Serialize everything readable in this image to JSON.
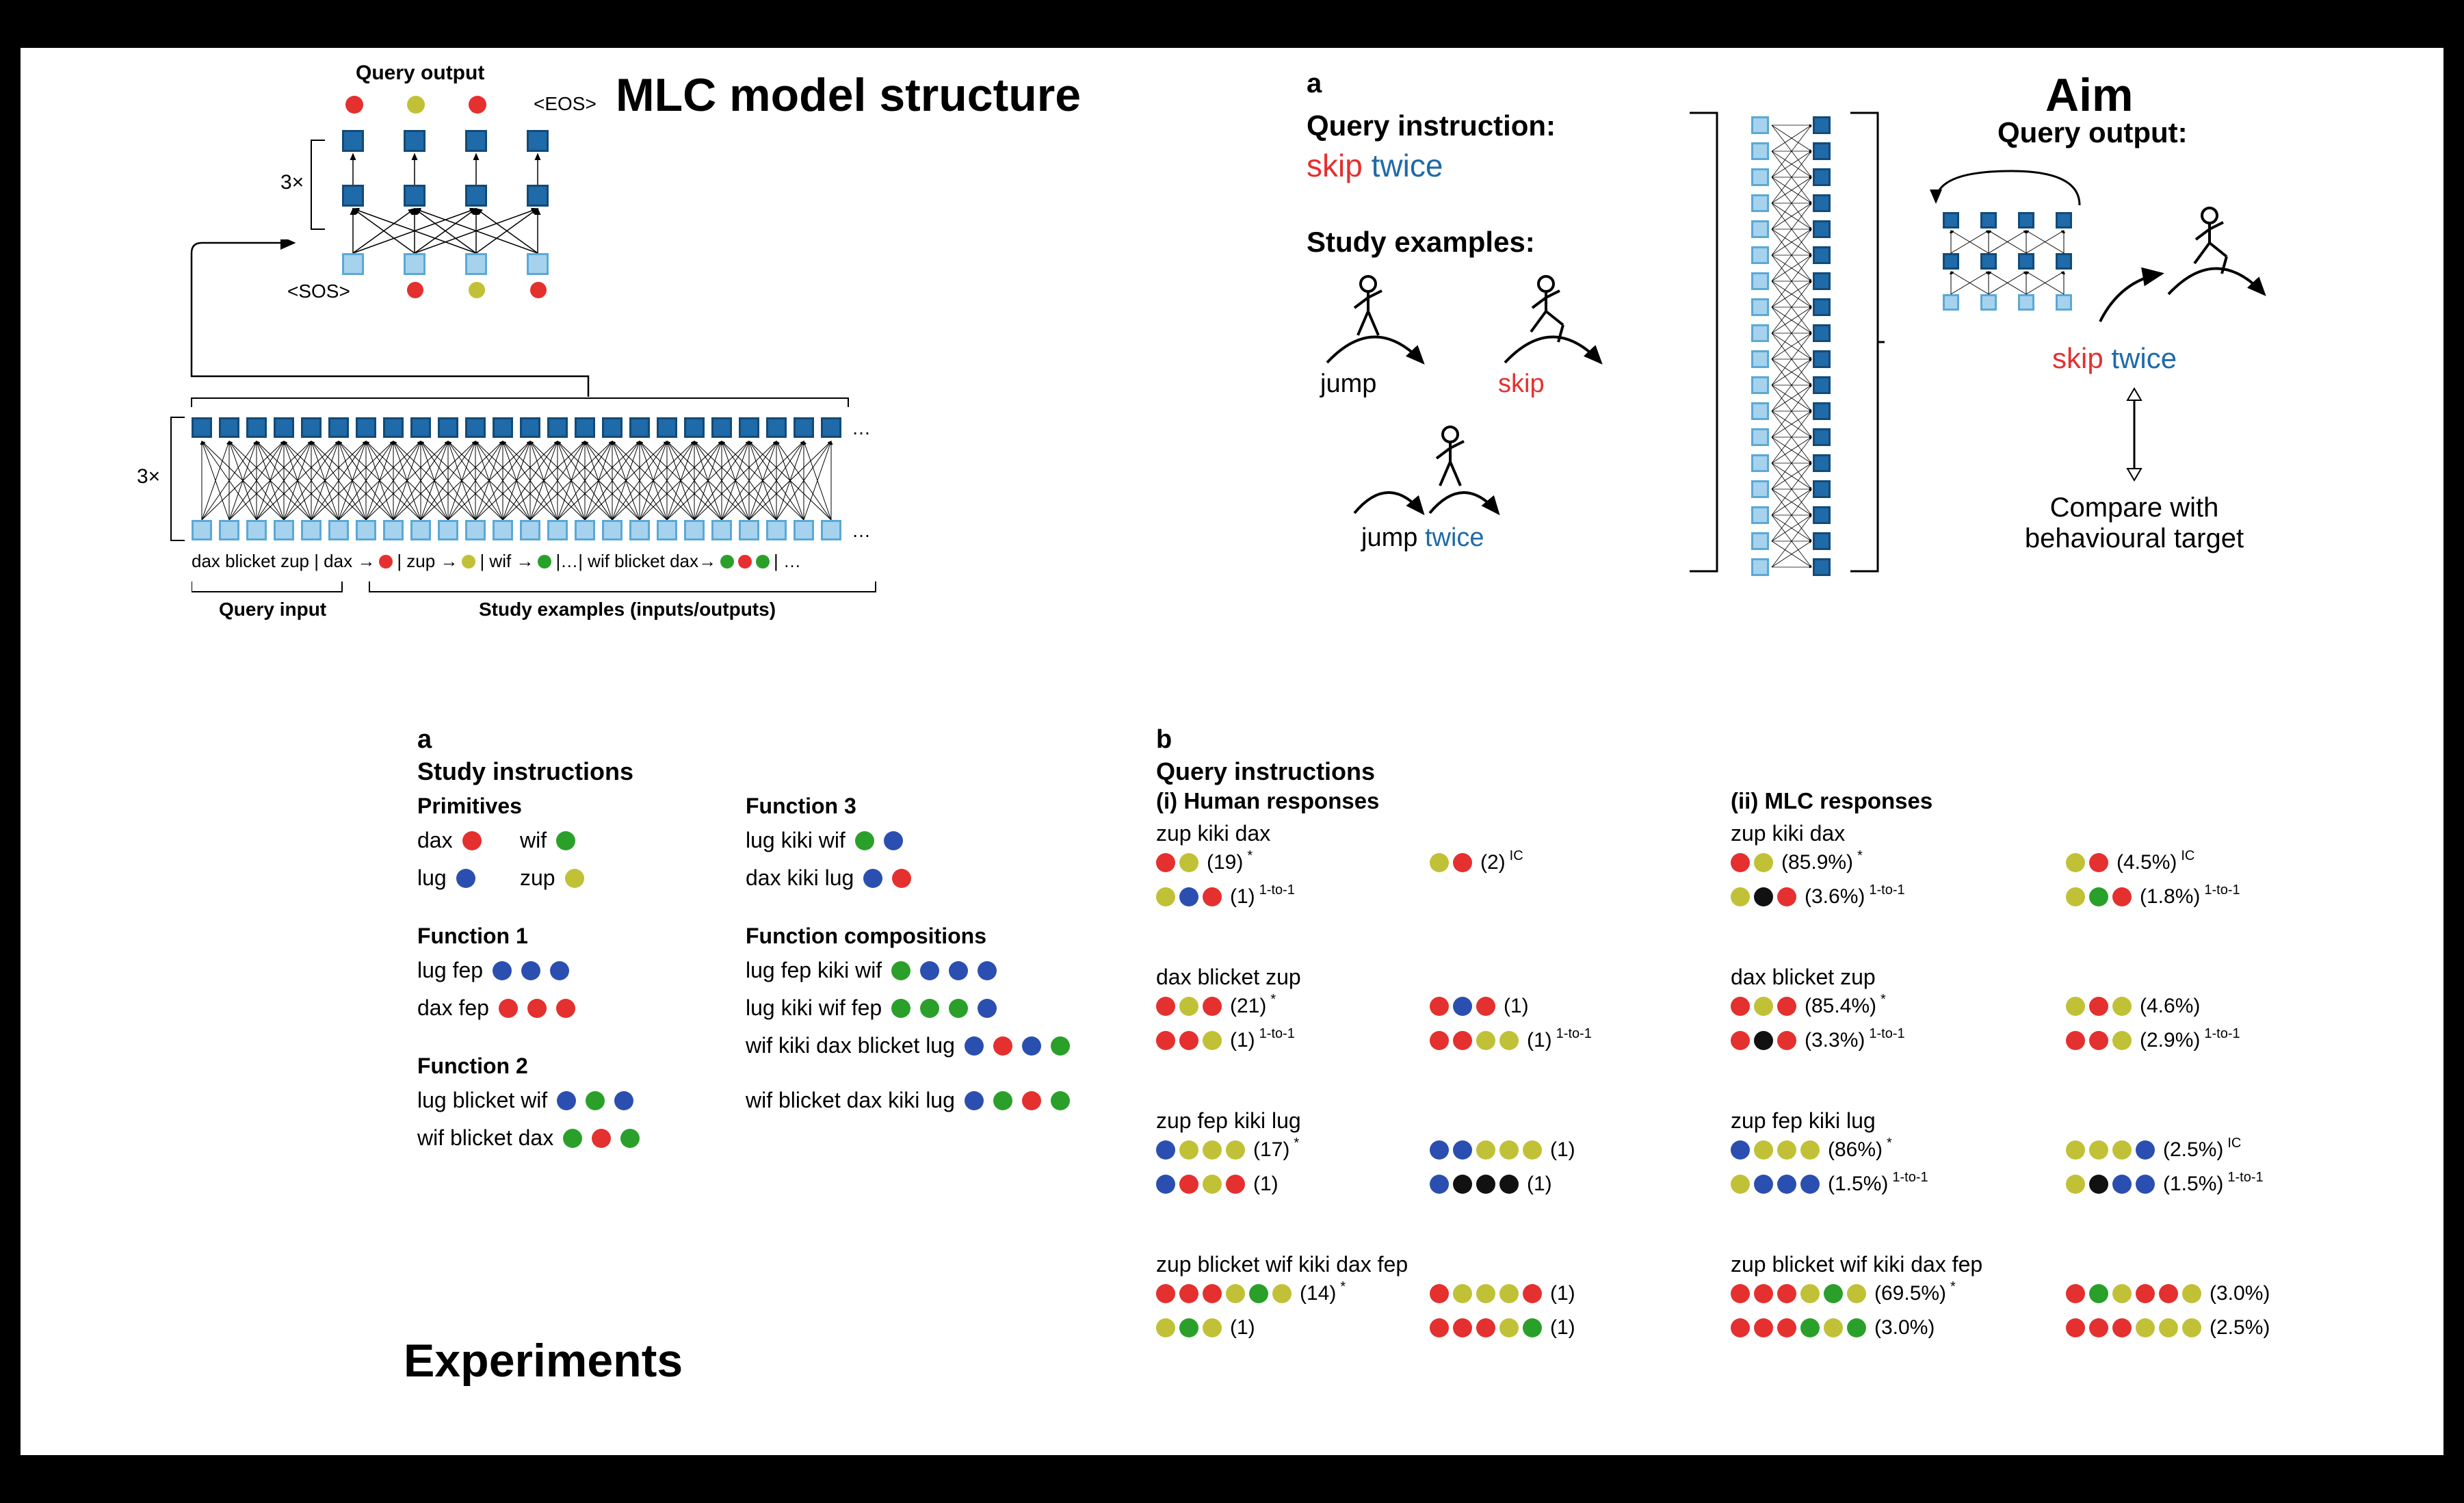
{
  "colors": {
    "red": "#e4302f",
    "yellow": "#c1c137",
    "green": "#2aa02a",
    "blue": "#2b4fb0",
    "black": "#111111",
    "sq_light": "#a6d2ee",
    "sq_light_border": "#5aa9d6",
    "sq_dark": "#1f6aa8",
    "sq_dark_border": "#134a77"
  },
  "titles": {
    "mlc": "MLC model structure",
    "aim": "Aim",
    "experiments": "Experiments"
  },
  "mlc": {
    "top_label": "Query output",
    "eos": "<EOS>",
    "sos": "<SOS>",
    "three_x": "3×",
    "lower_three_x": "3×",
    "input_tokens": "dax blicket zup | dax → ",
    "input_tokens2": " | zup → ",
    "input_tokens3": " | wif → ",
    "input_tokens4": " |…| wif blicket dax→ ",
    "ellipsis": "…",
    "query_input": "Query input",
    "study_examples": "Study examples (inputs/outputs)",
    "dots": 4
  },
  "aim": {
    "panel_a": "a",
    "qi_label": "Query instruction:",
    "qi_skip": "skip",
    "qi_twice": "twice",
    "se_label": "Study examples:",
    "jump": "jump",
    "skip": "skip",
    "jump_twice_1": "jump",
    "jump_twice_2": "twice",
    "qo_label": "Query output:",
    "out_skip": "skip",
    "out_twice": "twice",
    "compare": "Compare with\nbehavioural target"
  },
  "study": {
    "panel": "a",
    "title": "Study instructions",
    "primitives": "Primitives",
    "f1": "Function 1",
    "f2": "Function 2",
    "f3": "Function 3",
    "fc": "Function compositions",
    "items": {
      "dax": "dax",
      "wif": "wif",
      "lug": "lug",
      "zup": "zup",
      "lug_fep": "lug fep",
      "dax_fep": "dax fep",
      "lug_blicket_wif": "lug blicket wif",
      "wif_blicket_dax": "wif blicket dax",
      "lug_kiki_wif": "lug kiki wif",
      "dax_kiki_lug": "dax kiki lug",
      "lug_fep_kiki_wif": "lug fep kiki wif",
      "lug_kiki_wif_fep": "lug kiki wif fep",
      "wif_kiki_dax_blicket_lug": "wif kiki dax blicket lug",
      "wif_blicket_dax_kiki_lug": "wif blicket dax kiki lug"
    }
  },
  "queries": {
    "panel": "b",
    "title": "Query instructions",
    "human_title": "(i) Human responses",
    "mlc_title": "(ii) MLC responses",
    "items": [
      {
        "prompt": "zup kiki dax",
        "human": [
          {
            "dots": [
              "red",
              "yellow"
            ],
            "n": "(19)",
            "sup": "*"
          },
          {
            "dots": [
              "yellow",
              "red"
            ],
            "n": "(2)",
            "sup": "IC"
          },
          {
            "dots": [
              "yellow",
              "blue",
              "red"
            ],
            "n": "(1)",
            "sup": "1-to-1"
          }
        ],
        "mlc": [
          {
            "dots": [
              "red",
              "yellow"
            ],
            "n": "(85.9%)",
            "sup": "*"
          },
          {
            "dots": [
              "yellow",
              "red"
            ],
            "n": "(4.5%)",
            "sup": "IC"
          },
          {
            "dots": [
              "yellow",
              "black",
              "red"
            ],
            "n": "(3.6%)",
            "sup": "1-to-1"
          },
          {
            "dots": [
              "yellow",
              "green",
              "red"
            ],
            "n": "(1.8%)",
            "sup": "1-to-1"
          }
        ]
      },
      {
        "prompt": "dax blicket zup",
        "human": [
          {
            "dots": [
              "red",
              "yellow",
              "red"
            ],
            "n": "(21)",
            "sup": "*"
          },
          {
            "dots": [
              "red",
              "blue",
              "red"
            ],
            "n": "(1)",
            "sup": ""
          },
          {
            "dots": [
              "red",
              "red",
              "yellow"
            ],
            "n": "(1)",
            "sup": "1-to-1"
          },
          {
            "dots": [
              "red",
              "red",
              "yellow",
              "yellow"
            ],
            "n": "(1)",
            "sup": "1-to-1"
          }
        ],
        "mlc": [
          {
            "dots": [
              "red",
              "yellow",
              "red"
            ],
            "n": "(85.4%)",
            "sup": "*"
          },
          {
            "dots": [
              "yellow",
              "red",
              "yellow"
            ],
            "n": "(4.6%)",
            "sup": ""
          },
          {
            "dots": [
              "red",
              "black",
              "red"
            ],
            "n": "(3.3%)",
            "sup": "1-to-1"
          },
          {
            "dots": [
              "red",
              "red",
              "yellow"
            ],
            "n": "(2.9%)",
            "sup": "1-to-1"
          }
        ]
      },
      {
        "prompt": "zup fep kiki lug",
        "human": [
          {
            "dots": [
              "blue",
              "yellow",
              "yellow",
              "yellow"
            ],
            "n": "(17)",
            "sup": "*"
          },
          {
            "dots": [
              "blue",
              "blue",
              "yellow",
              "yellow",
              "yellow"
            ],
            "n": "(1)",
            "sup": ""
          },
          {
            "dots": [
              "blue",
              "red",
              "yellow",
              "red"
            ],
            "n": "(1)",
            "sup": ""
          },
          {
            "dots": [
              "blue",
              "black",
              "black",
              "black"
            ],
            "n": "(1)",
            "sup": ""
          }
        ],
        "mlc": [
          {
            "dots": [
              "blue",
              "yellow",
              "yellow",
              "yellow"
            ],
            "n": "(86%)",
            "sup": "*"
          },
          {
            "dots": [
              "yellow",
              "yellow",
              "yellow",
              "blue"
            ],
            "n": "(2.5%)",
            "sup": "IC"
          },
          {
            "dots": [
              "yellow",
              "blue",
              "blue",
              "blue"
            ],
            "n": "(1.5%)",
            "sup": "1-to-1"
          },
          {
            "dots": [
              "yellow",
              "black",
              "blue",
              "blue"
            ],
            "n": "(1.5%)",
            "sup": "1-to-1"
          }
        ]
      },
      {
        "prompt": "zup blicket wif kiki dax fep",
        "human": [
          {
            "dots": [
              "red",
              "red",
              "red",
              "yellow",
              "green",
              "yellow"
            ],
            "n": "(14)",
            "sup": "*"
          },
          {
            "dots": [
              "red",
              "yellow",
              "yellow",
              "yellow",
              "red"
            ],
            "n": "(1)",
            "sup": ""
          },
          {
            "dots": [
              "yellow",
              "green",
              "yellow"
            ],
            "n": "(1)",
            "sup": ""
          },
          {
            "dots": [
              "red",
              "red",
              "red",
              "yellow",
              "green"
            ],
            "n": "(1)",
            "sup": ""
          }
        ],
        "mlc": [
          {
            "dots": [
              "red",
              "red",
              "red",
              "yellow",
              "green",
              "yellow"
            ],
            "n": "(69.5%)",
            "sup": "*"
          },
          {
            "dots": [
              "red",
              "green",
              "yellow",
              "red",
              "red",
              "yellow"
            ],
            "n": "(3.0%)",
            "sup": ""
          },
          {
            "dots": [
              "red",
              "red",
              "red",
              "green",
              "yellow",
              "green"
            ],
            "n": "(3.0%)",
            "sup": ""
          },
          {
            "dots": [
              "red",
              "red",
              "red",
              "yellow",
              "yellow",
              "yellow"
            ],
            "n": "(2.5%)",
            "sup": ""
          }
        ]
      }
    ]
  }
}
